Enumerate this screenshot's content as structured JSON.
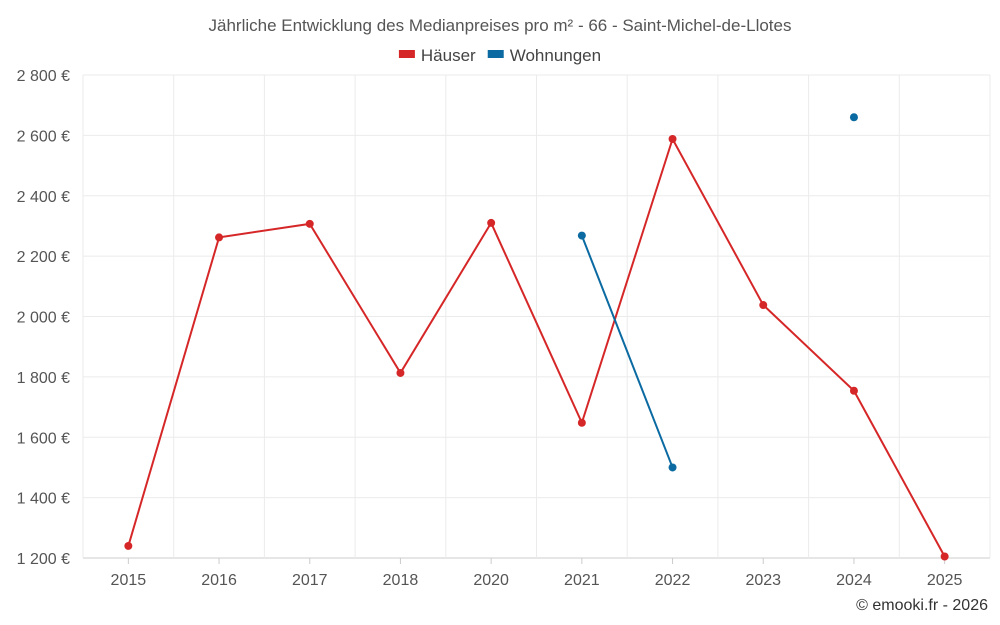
{
  "chart_data": {
    "type": "line",
    "title": "Jährliche Entwicklung des Medianpreises pro m² - 66 - Saint-Michel-de-Llotes",
    "categories": [
      "2015",
      "2016",
      "2017",
      "2018",
      "2020",
      "2021",
      "2022",
      "2023",
      "2024",
      "2025"
    ],
    "ylim": [
      1200,
      2800
    ],
    "yticks": [
      1200,
      1400,
      1600,
      1800,
      2000,
      2200,
      2400,
      2600,
      2800
    ],
    "ytick_labels": [
      "1 200 €",
      "1 400 €",
      "1 600 €",
      "1 800 €",
      "2 000 €",
      "2 200 €",
      "2 400 €",
      "2 600 €",
      "2 800 €"
    ],
    "grid": true,
    "legend_position": "top-center",
    "series": [
      {
        "name": "Häuser",
        "color": "#d62728",
        "values": [
          1240,
          2262,
          2307,
          1813,
          2310,
          1648,
          2588,
          2038,
          1754,
          1205
        ]
      },
      {
        "name": "Wohnungen",
        "color": "#0a6aa1",
        "values": [
          null,
          null,
          null,
          null,
          null,
          2268,
          1500,
          null,
          2660,
          null
        ]
      }
    ],
    "credit": "© emooki.fr - 2026"
  }
}
